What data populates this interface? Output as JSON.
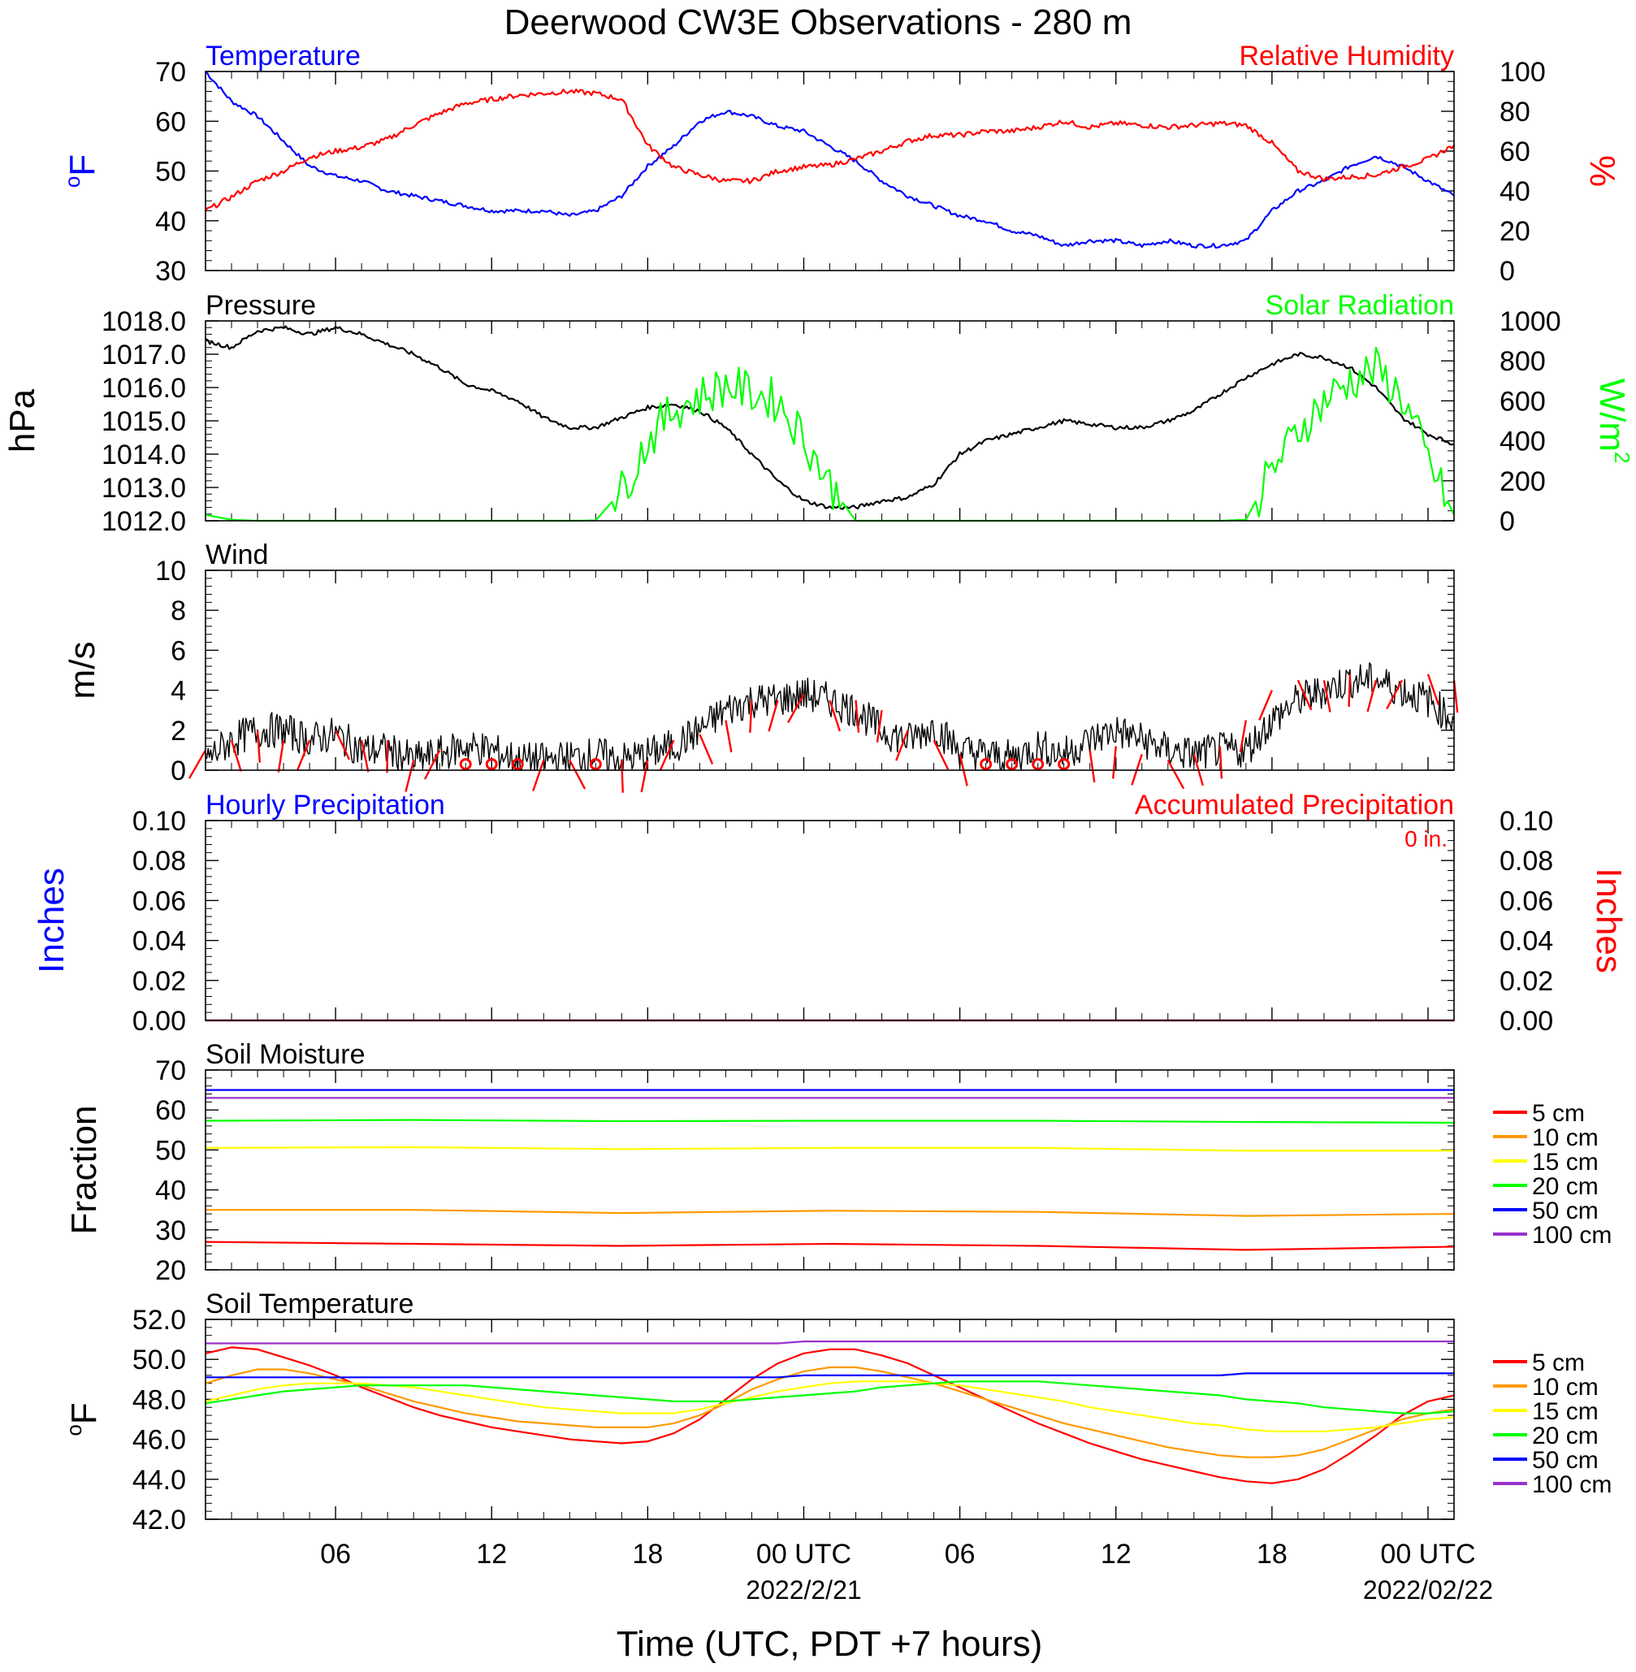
{
  "title": "Deerwood CW3E Observations - 280 m",
  "x_axis": {
    "label": "Time (UTC, PDT +7 hours)",
    "range_hours": [
      0,
      48
    ],
    "ticks": [
      {
        "hour": 5,
        "label": "06",
        "sub": ""
      },
      {
        "hour": 11,
        "label": "12",
        "sub": ""
      },
      {
        "hour": 17,
        "label": "18",
        "sub": ""
      },
      {
        "hour": 23,
        "label": "00 UTC",
        "sub": "2022/2/21"
      },
      {
        "hour": 29,
        "label": "06",
        "sub": ""
      },
      {
        "hour": 35,
        "label": "12",
        "sub": ""
      },
      {
        "hour": 41,
        "label": "18",
        "sub": ""
      },
      {
        "hour": 47,
        "label": "00 UTC",
        "sub": "2022/02/22"
      }
    ]
  },
  "colors": {
    "blue": "#0000ff",
    "red": "#ff0000",
    "green": "#00ff00",
    "black": "#000000",
    "orange": "#ff9900",
    "yellow": "#ffff00",
    "purple": "#9933cc"
  },
  "chart_data": [
    {
      "type": "line",
      "panel": "temperature_humidity",
      "left_title": "Temperature",
      "right_title": "Relative Humidity",
      "left_ylabel": "oF",
      "right_ylabel": "%",
      "left_ylim": [
        30,
        70
      ],
      "left_ticks": [
        "30",
        "40",
        "50",
        "60",
        "70"
      ],
      "right_ylim": [
        0,
        100
      ],
      "right_ticks": [
        "0",
        "20",
        "40",
        "60",
        "80",
        "100"
      ],
      "x_hours": [
        0,
        1,
        2,
        3,
        4,
        5,
        6,
        7,
        8,
        9,
        10,
        11,
        12,
        13,
        14,
        15,
        16,
        17,
        18,
        19,
        20,
        21,
        22,
        23,
        24,
        25,
        26,
        27,
        28,
        29,
        30,
        31,
        32,
        33,
        34,
        35,
        36,
        37,
        38,
        39,
        40,
        41,
        42,
        43,
        44,
        45,
        46,
        47,
        48
      ],
      "series": [
        {
          "name": "Temperature",
          "axis": "left",
          "color": "#0000ff",
          "values": [
            70,
            64,
            61,
            56,
            51,
            49,
            48,
            46,
            45,
            44,
            43,
            42,
            42,
            42,
            41,
            42,
            45,
            51,
            55,
            60,
            62,
            61,
            59,
            58,
            55,
            52,
            48,
            45,
            43,
            41,
            40,
            38,
            37,
            35,
            36,
            36,
            35,
            36,
            35,
            35,
            36,
            42,
            46,
            48,
            51,
            53,
            51,
            48,
            45
          ]
        },
        {
          "name": "Relative Humidity",
          "axis": "right",
          "color": "#ff0000",
          "values": [
            30,
            37,
            45,
            50,
            57,
            60,
            62,
            66,
            73,
            79,
            84,
            86,
            88,
            89,
            90,
            89,
            86,
            63,
            52,
            48,
            45,
            45,
            50,
            52,
            53,
            56,
            60,
            65,
            68,
            68,
            70,
            70,
            72,
            75,
            72,
            74,
            73,
            72,
            73,
            74,
            73,
            64,
            50,
            46,
            47,
            48,
            52,
            56,
            63
          ]
        }
      ]
    },
    {
      "type": "line",
      "panel": "pressure_solar",
      "left_title": "Pressure",
      "right_title": "Solar Radiation",
      "left_ylabel": "hPa",
      "right_ylabel": "W/m2",
      "left_ylim": [
        1012.0,
        1018.0
      ],
      "left_ticks": [
        "1012.0",
        "1013.0",
        "1014.0",
        "1015.0",
        "1016.0",
        "1017.0",
        "1018.0"
      ],
      "right_ylim": [
        0,
        1000
      ],
      "right_ticks": [
        "0",
        "200",
        "400",
        "600",
        "800",
        "1000"
      ],
      "x_hours": [
        0,
        1,
        2,
        3,
        4,
        5,
        6,
        7,
        8,
        9,
        10,
        11,
        12,
        13,
        14,
        15,
        16,
        17,
        18,
        19,
        20,
        21,
        22,
        23,
        24,
        25,
        26,
        27,
        28,
        29,
        30,
        31,
        32,
        33,
        34,
        35,
        36,
        37,
        38,
        39,
        40,
        41,
        42,
        43,
        44,
        45,
        46,
        47,
        48
      ],
      "series": [
        {
          "name": "Pressure",
          "axis": "left",
          "color": "#000000",
          "values": [
            1017.4,
            1017.2,
            1017.7,
            1017.8,
            1017.6,
            1017.8,
            1017.6,
            1017.3,
            1017.0,
            1016.6,
            1016.1,
            1015.9,
            1015.6,
            1015.1,
            1014.8,
            1014.8,
            1015.1,
            1015.4,
            1015.5,
            1015.3,
            1014.8,
            1014.0,
            1013.2,
            1012.6,
            1012.4,
            1012.4,
            1012.6,
            1012.7,
            1013.1,
            1014.0,
            1014.4,
            1014.6,
            1014.8,
            1015.0,
            1014.9,
            1014.8,
            1014.8,
            1015.0,
            1015.3,
            1015.8,
            1016.3,
            1016.7,
            1017.0,
            1016.9,
            1016.6,
            1016.0,
            1015.1,
            1014.6,
            1014.3
          ]
        },
        {
          "name": "Solar Radiation",
          "axis": "right",
          "color": "#00ff00",
          "values": [
            30,
            5,
            0,
            0,
            0,
            0,
            0,
            0,
            0,
            0,
            0,
            0,
            0,
            0,
            0,
            2,
            150,
            400,
            560,
            620,
            680,
            640,
            600,
            420,
            180,
            0,
            0,
            0,
            0,
            0,
            0,
            0,
            0,
            0,
            0,
            0,
            0,
            0,
            0,
            0,
            5,
            250,
            450,
            600,
            700,
            760,
            620,
            300,
            30
          ]
        }
      ]
    },
    {
      "type": "line",
      "panel": "wind",
      "left_title": "Wind",
      "left_ylabel": "m/s",
      "left_ylim": [
        0,
        10
      ],
      "left_ticks": [
        "0",
        "2",
        "4",
        "6",
        "8",
        "10"
      ],
      "x_hours": [
        0,
        1,
        2,
        3,
        4,
        5,
        6,
        7,
        8,
        9,
        10,
        11,
        12,
        13,
        14,
        15,
        16,
        17,
        18,
        19,
        20,
        21,
        22,
        23,
        24,
        25,
        26,
        27,
        28,
        29,
        30,
        31,
        32,
        33,
        34,
        35,
        36,
        37,
        38,
        39,
        40,
        41,
        42,
        43,
        44,
        45,
        46,
        47,
        48
      ],
      "series": [
        {
          "name": "Wind speed",
          "axis": "left",
          "color": "#000000",
          "values": [
            0.5,
            1.5,
            2.0,
            2.0,
            1.5,
            1.8,
            1.0,
            1.0,
            0.5,
            0.8,
            1.2,
            1.0,
            0.5,
            0.5,
            0.6,
            0.8,
            0.5,
            0.8,
            1.2,
            2.0,
            3.0,
            3.5,
            3.5,
            3.8,
            3.5,
            3.0,
            2.0,
            1.5,
            2.2,
            1.0,
            0.8,
            0.6,
            1.2,
            0.8,
            1.5,
            2.0,
            1.5,
            1.0,
            0.8,
            1.0,
            1.0,
            2.5,
            3.5,
            4.0,
            4.5,
            4.5,
            4.0,
            3.5,
            2.5
          ]
        },
        {
          "name": "Wind barbs",
          "axis": "left",
          "color": "#ff0000",
          "values": [
            1,
            1.5,
            2,
            1.5,
            1.5,
            2,
            1.5,
            1.5,
            0.5,
            1,
            0.3,
            0.3,
            0.1,
            0.5,
            0.5,
            0.1,
            0.5,
            0.5,
            1.5,
            1.8,
            2.5,
            3.5,
            3.5,
            3.8,
            3.5,
            3.5,
            3,
            2,
            1.5,
            0.8,
            0.1,
            0.1,
            0.3,
            0.3,
            1,
            1.2,
            0.8,
            0.5,
            0.8,
            1.2,
            2.5,
            4,
            4.5,
            4.5,
            4.8,
            4.5,
            4.5,
            4.8,
            4.5
          ]
        }
      ]
    },
    {
      "type": "line",
      "panel": "precipitation",
      "left_title": "Hourly Precipitation",
      "right_title": "Accumulated Precipitation",
      "annotation": "0 in.",
      "left_ylabel": "Inches",
      "right_ylabel": "Inches",
      "left_ylim": [
        0,
        0.1
      ],
      "left_ticks": [
        "0.00",
        "0.02",
        "0.04",
        "0.06",
        "0.08",
        "0.10"
      ],
      "right_ylim": [
        0,
        0.1
      ],
      "right_ticks": [
        "0.00",
        "0.02",
        "0.04",
        "0.06",
        "0.08",
        "0.10"
      ],
      "x_hours": [
        0,
        48
      ],
      "series": [
        {
          "name": "Hourly Precipitation",
          "axis": "left",
          "color": "#0000ff",
          "values": [
            0,
            0
          ]
        },
        {
          "name": "Accumulated Precipitation",
          "axis": "right",
          "color": "#ff0000",
          "values": [
            0,
            0
          ]
        }
      ]
    },
    {
      "type": "line",
      "panel": "soil_moisture",
      "left_title": "Soil Moisture",
      "left_ylabel": "Fraction",
      "left_ylim": [
        20,
        70
      ],
      "left_ticks": [
        "20",
        "30",
        "40",
        "50",
        "60",
        "70"
      ],
      "x_hours": [
        0,
        8,
        16,
        24,
        32,
        40,
        48
      ],
      "series": [
        {
          "name": "5 cm",
          "color": "#ff0000",
          "values": [
            27,
            26.5,
            26,
            26.5,
            26,
            25,
            25.8
          ]
        },
        {
          "name": "10 cm",
          "color": "#ff9900",
          "values": [
            35,
            35,
            34.2,
            34.8,
            34.5,
            33.5,
            34
          ]
        },
        {
          "name": "15 cm",
          "color": "#ffff00",
          "values": [
            50.5,
            50.7,
            50.2,
            50.5,
            50.5,
            49.8,
            49.8
          ]
        },
        {
          "name": "20 cm",
          "color": "#00ff00",
          "values": [
            57.3,
            57.5,
            57.2,
            57.3,
            57.3,
            57,
            56.8
          ]
        },
        {
          "name": "50 cm",
          "color": "#0000ff",
          "values": [
            65,
            65,
            65,
            65,
            65,
            65,
            65
          ]
        },
        {
          "name": "100 cm",
          "color": "#9933cc",
          "values": [
            63,
            63,
            63,
            63,
            63,
            63,
            63
          ]
        }
      ]
    },
    {
      "type": "line",
      "panel": "soil_temperature",
      "left_title": "Soil Temperature",
      "left_ylabel": "oF",
      "left_ylim": [
        42.0,
        52.0
      ],
      "left_ticks": [
        "42.0",
        "44.0",
        "46.0",
        "48.0",
        "50.0",
        "52.0"
      ],
      "x_hours": [
        0,
        1,
        2,
        3,
        4,
        5,
        6,
        7,
        8,
        9,
        10,
        11,
        12,
        13,
        14,
        15,
        16,
        17,
        18,
        19,
        20,
        21,
        22,
        23,
        24,
        25,
        26,
        27,
        28,
        29,
        30,
        31,
        32,
        33,
        34,
        35,
        36,
        37,
        38,
        39,
        40,
        41,
        42,
        43,
        44,
        45,
        46,
        47,
        48
      ],
      "series": [
        {
          "name": "5 cm",
          "color": "#ff0000",
          "values": [
            50.3,
            50.6,
            50.5,
            50.1,
            49.7,
            49.2,
            48.6,
            48.1,
            47.6,
            47.2,
            46.9,
            46.6,
            46.4,
            46.2,
            46.0,
            45.9,
            45.8,
            45.9,
            46.3,
            47.0,
            48.0,
            49.0,
            49.8,
            50.3,
            50.5,
            50.5,
            50.2,
            49.8,
            49.2,
            48.6,
            48.0,
            47.4,
            46.8,
            46.3,
            45.8,
            45.4,
            45.0,
            44.7,
            44.4,
            44.1,
            43.9,
            43.8,
            44.0,
            44.5,
            45.3,
            46.2,
            47.2,
            47.9,
            48.2
          ]
        },
        {
          "name": "10 cm",
          "color": "#ff9900",
          "values": [
            48.8,
            49.2,
            49.5,
            49.5,
            49.3,
            49.0,
            48.7,
            48.3,
            47.9,
            47.6,
            47.3,
            47.1,
            46.9,
            46.8,
            46.7,
            46.6,
            46.6,
            46.6,
            46.8,
            47.2,
            47.8,
            48.5,
            49.0,
            49.4,
            49.6,
            49.6,
            49.4,
            49.1,
            48.8,
            48.4,
            48.0,
            47.6,
            47.2,
            46.8,
            46.5,
            46.2,
            45.9,
            45.6,
            45.4,
            45.2,
            45.1,
            45.1,
            45.2,
            45.5,
            46.0,
            46.5,
            47.0,
            47.3,
            47.5
          ]
        },
        {
          "name": "15 cm",
          "color": "#ffff00",
          "values": [
            47.9,
            48.2,
            48.5,
            48.7,
            48.8,
            48.8,
            48.8,
            48.7,
            48.6,
            48.4,
            48.2,
            48.0,
            47.8,
            47.6,
            47.5,
            47.4,
            47.3,
            47.3,
            47.3,
            47.5,
            47.8,
            48.1,
            48.4,
            48.6,
            48.8,
            48.9,
            48.9,
            48.9,
            48.8,
            48.7,
            48.5,
            48.3,
            48.1,
            47.9,
            47.6,
            47.4,
            47.2,
            47.0,
            46.8,
            46.7,
            46.5,
            46.4,
            46.4,
            46.4,
            46.5,
            46.6,
            46.8,
            47.0,
            47.1
          ]
        },
        {
          "name": "20 cm",
          "color": "#00ff00",
          "values": [
            47.8,
            48.0,
            48.2,
            48.4,
            48.5,
            48.6,
            48.7,
            48.7,
            48.7,
            48.7,
            48.7,
            48.6,
            48.5,
            48.4,
            48.3,
            48.2,
            48.1,
            48.0,
            47.9,
            47.9,
            47.9,
            48.0,
            48.1,
            48.2,
            48.3,
            48.4,
            48.6,
            48.7,
            48.8,
            48.9,
            48.9,
            48.9,
            48.9,
            48.8,
            48.7,
            48.6,
            48.5,
            48.4,
            48.3,
            48.2,
            48.0,
            47.9,
            47.8,
            47.6,
            47.5,
            47.4,
            47.3,
            47.3,
            47.4
          ]
        },
        {
          "name": "50 cm",
          "color": "#0000ff",
          "values": [
            49.1,
            49.1,
            49.1,
            49.1,
            49.1,
            49.1,
            49.1,
            49.1,
            49.1,
            49.1,
            49.1,
            49.1,
            49.1,
            49.1,
            49.1,
            49.1,
            49.1,
            49.1,
            49.1,
            49.1,
            49.1,
            49.1,
            49.1,
            49.2,
            49.2,
            49.2,
            49.2,
            49.2,
            49.2,
            49.2,
            49.2,
            49.2,
            49.2,
            49.2,
            49.2,
            49.2,
            49.2,
            49.2,
            49.2,
            49.2,
            49.3,
            49.3,
            49.3,
            49.3,
            49.3,
            49.3,
            49.3,
            49.3,
            49.3
          ]
        },
        {
          "name": "100 cm",
          "color": "#9933cc",
          "values": [
            50.8,
            50.8,
            50.8,
            50.8,
            50.8,
            50.8,
            50.8,
            50.8,
            50.8,
            50.8,
            50.8,
            50.8,
            50.8,
            50.8,
            50.8,
            50.8,
            50.8,
            50.8,
            50.8,
            50.8,
            50.8,
            50.8,
            50.8,
            50.9,
            50.9,
            50.9,
            50.9,
            50.9,
            50.9,
            50.9,
            50.9,
            50.9,
            50.9,
            50.9,
            50.9,
            50.9,
            50.9,
            50.9,
            50.9,
            50.9,
            50.9,
            50.9,
            50.9,
            50.9,
            50.9,
            50.9,
            50.9,
            50.9,
            50.9
          ]
        }
      ]
    }
  ]
}
